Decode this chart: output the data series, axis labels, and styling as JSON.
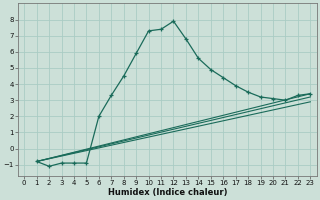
{
  "xlabel": "Humidex (Indice chaleur)",
  "bg_color": "#cce0d8",
  "grid_color": "#aaccc4",
  "line_color": "#1a6b5a",
  "xlim": [
    -0.5,
    23.5
  ],
  "ylim": [
    -1.7,
    9.0
  ],
  "yticks": [
    -1,
    0,
    1,
    2,
    3,
    4,
    5,
    6,
    7,
    8
  ],
  "xticks": [
    0,
    1,
    2,
    3,
    4,
    5,
    6,
    7,
    8,
    9,
    10,
    11,
    12,
    13,
    14,
    15,
    16,
    17,
    18,
    19,
    20,
    21,
    22,
    23
  ],
  "curve1_x": [
    1,
    2,
    3,
    4,
    5,
    6,
    7,
    8,
    9,
    10,
    11,
    12,
    13,
    14,
    15,
    16,
    17,
    18,
    19,
    20,
    21,
    22,
    23
  ],
  "curve1_y": [
    -0.8,
    -1.1,
    -0.9,
    -0.9,
    -0.9,
    2.0,
    3.3,
    4.5,
    5.9,
    7.3,
    7.4,
    7.9,
    6.8,
    5.6,
    4.9,
    4.4,
    3.9,
    3.5,
    3.2,
    3.1,
    3.0,
    3.3,
    3.4
  ],
  "line2_x": [
    1,
    23
  ],
  "line2_y": [
    -0.8,
    3.4
  ],
  "line3_x": [
    1,
    23
  ],
  "line3_y": [
    -0.8,
    3.2
  ],
  "line4_x": [
    1,
    23
  ],
  "line4_y": [
    -0.8,
    2.9
  ],
  "xlabel_fontsize": 6.0,
  "tick_fontsize": 5.0
}
